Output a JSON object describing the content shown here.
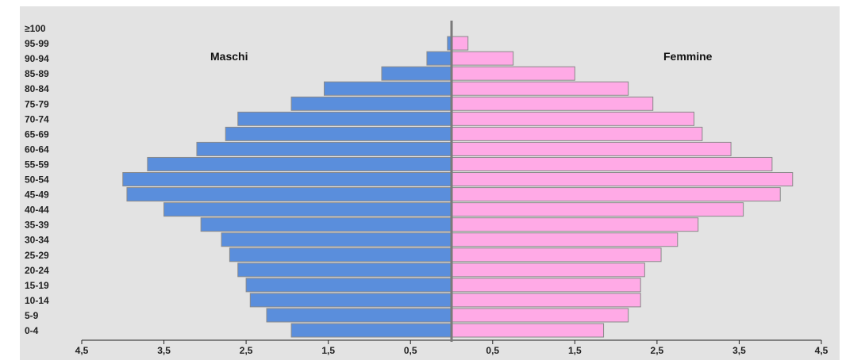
{
  "chart_data": {
    "type": "bar",
    "orientation": "horizontal-population-pyramid",
    "categories": [
      "0-4",
      "5-9",
      "10-14",
      "15-19",
      "20-24",
      "25-29",
      "30-34",
      "35-39",
      "40-44",
      "45-49",
      "50-54",
      "55-59",
      "60-64",
      "65-69",
      "70-74",
      "75-79",
      "80-84",
      "85-89",
      "90-94",
      "95-99",
      "≥100"
    ],
    "series": [
      {
        "name": "Maschi",
        "color": "#5a8edc",
        "values": [
          1.95,
          2.25,
          2.45,
          2.5,
          2.6,
          2.7,
          2.8,
          3.05,
          3.5,
          3.95,
          4.0,
          3.7,
          3.1,
          2.75,
          2.6,
          1.95,
          1.55,
          0.85,
          0.3,
          0.05,
          0
        ]
      },
      {
        "name": "Femmine",
        "color": "#ffaae6",
        "values": [
          1.85,
          2.15,
          2.3,
          2.3,
          2.35,
          2.55,
          2.75,
          3.0,
          3.55,
          4.0,
          4.15,
          3.9,
          3.4,
          3.05,
          2.95,
          2.45,
          2.15,
          1.5,
          0.75,
          0.2,
          0
        ]
      }
    ],
    "xlim": [
      -4.5,
      4.5
    ],
    "x_ticks": [
      -4.5,
      -3.5,
      -2.5,
      -1.5,
      -0.5,
      0.5,
      1.5,
      2.5,
      3.5,
      4.5
    ],
    "x_tick_labels": [
      "4,5",
      "3,5",
      "2,5",
      "1,5",
      "0,5",
      "0,5",
      "1,5",
      "2,5",
      "3,5",
      "4,5"
    ],
    "legend": "in-plot labels",
    "grid": false
  },
  "colors": {
    "background": "#e3e3e3",
    "male_bar": "#5a8edc",
    "female_bar": "#ffaae6",
    "bar_border": "#8a8a8a",
    "center_axis": "#7a7a7a"
  }
}
